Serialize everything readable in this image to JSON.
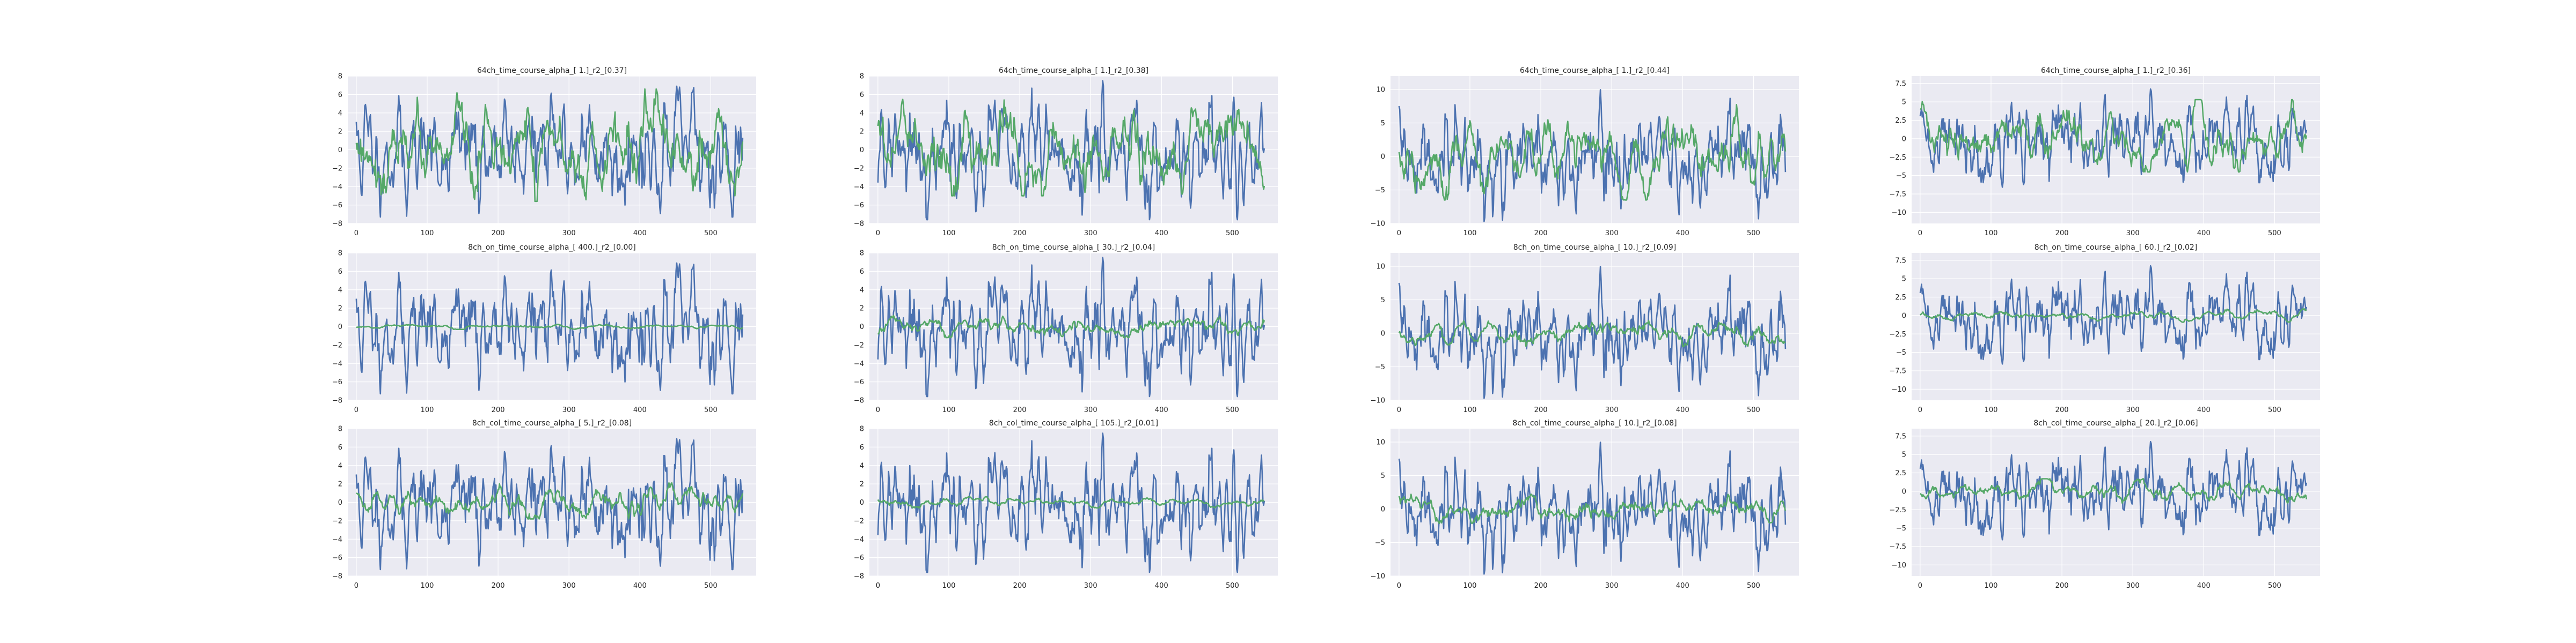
{
  "colors": {
    "observed": "#4C72B0",
    "predicted": "#55A868",
    "panel_bg": "#EAEAF2",
    "grid": "#FFFFFF"
  },
  "grid": true,
  "chart_data": [
    {
      "type": "line",
      "title": "64ch_time_course_alpha_[ 1.]_r2_[0.37]",
      "xlim": [
        -12,
        564
      ],
      "ylim": [
        -8,
        8
      ],
      "xticks": [
        0,
        100,
        200,
        300,
        400,
        500
      ],
      "yticks": [
        -8,
        -6,
        -4,
        -2,
        0,
        2,
        4,
        6,
        8
      ],
      "x": {
        "start": 0,
        "stop": 545
      },
      "series": [
        {
          "color": "#4C72B0",
          "amp": 2.8,
          "mean": -0.3,
          "min": -7.3,
          "max": 6.9,
          "seed": 11,
          "smooth": 2
        },
        {
          "color": "#55A868",
          "amp": 2.4,
          "mean": 0.0,
          "min": -5.6,
          "max": 6.6,
          "seed": 12,
          "smooth": 5
        }
      ]
    },
    {
      "type": "line",
      "title": "64ch_time_course_alpha_[ 1.]_r2_[0.38]",
      "xlim": [
        -12,
        564
      ],
      "ylim": [
        -8,
        8
      ],
      "xticks": [
        0,
        100,
        200,
        300,
        400,
        500
      ],
      "yticks": [
        -8,
        -6,
        -4,
        -2,
        0,
        2,
        4,
        6,
        8
      ],
      "x": {
        "start": 0,
        "stop": 545
      },
      "series": [
        {
          "color": "#4C72B0",
          "amp": 2.8,
          "mean": -0.4,
          "min": -7.6,
          "max": 7.5,
          "seed": 21,
          "smooth": 2
        },
        {
          "color": "#55A868",
          "amp": 2.3,
          "mean": 0.0,
          "min": -5.0,
          "max": 5.8,
          "seed": 22,
          "smooth": 5
        }
      ]
    },
    {
      "type": "line",
      "title": "64ch_time_course_alpha_[ 1.]_r2_[0.44]",
      "xlim": [
        -12,
        564
      ],
      "ylim": [
        -10,
        12
      ],
      "xticks": [
        0,
        100,
        200,
        300,
        400,
        500
      ],
      "yticks": [
        -10,
        -5,
        0,
        5,
        10
      ],
      "x": {
        "start": 0,
        "stop": 545
      },
      "series": [
        {
          "color": "#4C72B0",
          "amp": 3.3,
          "mean": -0.5,
          "min": -9.7,
          "max": 11.5,
          "seed": 31,
          "smooth": 2
        },
        {
          "color": "#55A868",
          "amp": 2.8,
          "mean": 0.0,
          "min": -6.5,
          "max": 8.6,
          "seed": 32,
          "smooth": 5
        }
      ]
    },
    {
      "type": "line",
      "title": "64ch_time_course_alpha_[ 1.]_r2_[0.36]",
      "xlim": [
        -12,
        564
      ],
      "ylim": [
        -11.5,
        8.5
      ],
      "xticks": [
        0,
        100,
        200,
        300,
        400,
        500
      ],
      "yticks": [
        -10,
        -7.5,
        -5,
        -2.5,
        0,
        2.5,
        5,
        7.5
      ],
      "x": {
        "start": 0,
        "stop": 545
      },
      "series": [
        {
          "color": "#4C72B0",
          "amp": 2.6,
          "mean": -0.3,
          "min": -10.4,
          "max": 7.7,
          "seed": 41,
          "smooth": 2
        },
        {
          "color": "#55A868",
          "amp": 2.1,
          "mean": 0.0,
          "min": -4.5,
          "max": 5.3,
          "seed": 42,
          "smooth": 5
        }
      ]
    },
    {
      "type": "line",
      "title": "8ch_on_time_course_alpha_[ 400.]_r2_[0.00]",
      "xlim": [
        -12,
        564
      ],
      "ylim": [
        -8,
        8
      ],
      "xticks": [
        0,
        100,
        200,
        300,
        400,
        500
      ],
      "yticks": [
        -8,
        -6,
        -4,
        -2,
        0,
        2,
        4,
        6,
        8
      ],
      "x": {
        "start": 0,
        "stop": 545
      },
      "series": [
        {
          "color": "#4C72B0",
          "amp": 2.8,
          "mean": -0.3,
          "min": -7.3,
          "max": 6.9,
          "seed": 11,
          "smooth": 2
        },
        {
          "color": "#55A868",
          "amp": 0.12,
          "mean": 0.0,
          "min": -0.3,
          "max": 0.3,
          "seed": 51,
          "smooth": 10
        }
      ]
    },
    {
      "type": "line",
      "title": "8ch_on_time_course_alpha_[ 30.]_r2_[0.04]",
      "xlim": [
        -12,
        564
      ],
      "ylim": [
        -8,
        8
      ],
      "xticks": [
        0,
        100,
        200,
        300,
        400,
        500
      ],
      "yticks": [
        -8,
        -6,
        -4,
        -2,
        0,
        2,
        4,
        6,
        8
      ],
      "x": {
        "start": 0,
        "stop": 545
      },
      "series": [
        {
          "color": "#4C72B0",
          "amp": 2.8,
          "mean": -0.4,
          "min": -7.6,
          "max": 7.5,
          "seed": 21,
          "smooth": 2
        },
        {
          "color": "#55A868",
          "amp": 0.5,
          "mean": 0.0,
          "min": -1.2,
          "max": 1.2,
          "seed": 52,
          "smooth": 8
        }
      ]
    },
    {
      "type": "line",
      "title": "8ch_on_time_course_alpha_[ 10.]_r2_[0.09]",
      "xlim": [
        -12,
        564
      ],
      "ylim": [
        -10,
        12
      ],
      "xticks": [
        0,
        100,
        200,
        300,
        400,
        500
      ],
      "yticks": [
        -10,
        -5,
        0,
        5,
        10
      ],
      "x": {
        "start": 0,
        "stop": 545
      },
      "series": [
        {
          "color": "#4C72B0",
          "amp": 3.3,
          "mean": -0.5,
          "min": -9.7,
          "max": 11.5,
          "seed": 31,
          "smooth": 2
        },
        {
          "color": "#55A868",
          "amp": 0.9,
          "mean": 0.0,
          "min": -2.0,
          "max": 2.2,
          "seed": 53,
          "smooth": 7
        }
      ]
    },
    {
      "type": "line",
      "title": "8ch_on_time_course_alpha_[ 60.]_r2_[0.02]",
      "xlim": [
        -12,
        564
      ],
      "ylim": [
        -11.5,
        8.5
      ],
      "xticks": [
        0,
        100,
        200,
        300,
        400,
        500
      ],
      "yticks": [
        -10,
        -7.5,
        -5,
        -2.5,
        0,
        2.5,
        5,
        7.5
      ],
      "x": {
        "start": 0,
        "stop": 545
      },
      "series": [
        {
          "color": "#4C72B0",
          "amp": 2.6,
          "mean": -0.3,
          "min": -10.4,
          "max": 7.7,
          "seed": 41,
          "smooth": 2
        },
        {
          "color": "#55A868",
          "amp": 0.35,
          "mean": 0.0,
          "min": -0.9,
          "max": 0.9,
          "seed": 54,
          "smooth": 9
        }
      ]
    },
    {
      "type": "line",
      "title": "8ch_col_time_course_alpha_[ 5.]_r2_[0.08]",
      "xlim": [
        -12,
        564
      ],
      "ylim": [
        -8,
        8
      ],
      "xticks": [
        0,
        100,
        200,
        300,
        400,
        500
      ],
      "yticks": [
        -8,
        -6,
        -4,
        -2,
        0,
        2,
        4,
        6,
        8
      ],
      "x": {
        "start": 0,
        "stop": 545
      },
      "series": [
        {
          "color": "#4C72B0",
          "amp": 2.8,
          "mean": -0.3,
          "min": -7.3,
          "max": 6.9,
          "seed": 11,
          "smooth": 2
        },
        {
          "color": "#55A868",
          "amp": 0.8,
          "mean": 0.0,
          "min": -1.8,
          "max": 2.2,
          "seed": 61,
          "smooth": 6
        }
      ]
    },
    {
      "type": "line",
      "title": "8ch_col_time_course_alpha_[ 105.]_r2_[0.01]",
      "xlim": [
        -12,
        564
      ],
      "ylim": [
        -8,
        8
      ],
      "xticks": [
        0,
        100,
        200,
        300,
        400,
        500
      ],
      "yticks": [
        -8,
        -6,
        -4,
        -2,
        0,
        2,
        4,
        6,
        8
      ],
      "x": {
        "start": 0,
        "stop": 545
      },
      "series": [
        {
          "color": "#4C72B0",
          "amp": 2.8,
          "mean": -0.4,
          "min": -7.6,
          "max": 7.5,
          "seed": 21,
          "smooth": 2
        },
        {
          "color": "#55A868",
          "amp": 0.25,
          "mean": 0.0,
          "min": -0.6,
          "max": 0.6,
          "seed": 62,
          "smooth": 9
        }
      ]
    },
    {
      "type": "line",
      "title": "8ch_col_time_course_alpha_[ 10.]_r2_[0.08]",
      "xlim": [
        -12,
        564
      ],
      "ylim": [
        -10,
        12
      ],
      "xticks": [
        0,
        100,
        200,
        300,
        400,
        500
      ],
      "yticks": [
        -10,
        -5,
        0,
        5,
        10
      ],
      "x": {
        "start": 0,
        "stop": 545
      },
      "series": [
        {
          "color": "#4C72B0",
          "amp": 3.3,
          "mean": -0.5,
          "min": -9.7,
          "max": 11.5,
          "seed": 31,
          "smooth": 2
        },
        {
          "color": "#55A868",
          "amp": 0.9,
          "mean": 0.0,
          "min": -2.2,
          "max": 2.2,
          "seed": 63,
          "smooth": 7
        }
      ]
    },
    {
      "type": "line",
      "title": "8ch_col_time_course_alpha_[ 20.]_r2_[0.06]",
      "xlim": [
        -12,
        564
      ],
      "ylim": [
        -11.5,
        8.5
      ],
      "xticks": [
        0,
        100,
        200,
        300,
        400,
        500
      ],
      "yticks": [
        -10,
        -7.5,
        -5,
        -2.5,
        0,
        2.5,
        5,
        7.5
      ],
      "x": {
        "start": 0,
        "stop": 545
      },
      "series": [
        {
          "color": "#4C72B0",
          "amp": 2.6,
          "mean": -0.3,
          "min": -10.4,
          "max": 7.7,
          "seed": 41,
          "smooth": 2
        },
        {
          "color": "#55A868",
          "amp": 0.7,
          "mean": 0.0,
          "min": -1.6,
          "max": 1.7,
          "seed": 64,
          "smooth": 7
        }
      ]
    }
  ]
}
